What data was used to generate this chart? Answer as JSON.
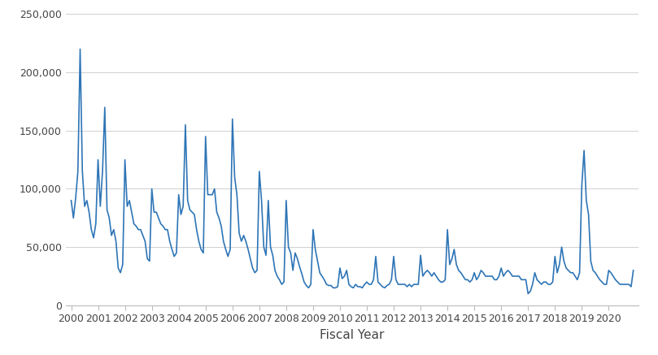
{
  "xlabel": "Fiscal Year",
  "line_color": "#2E75B6",
  "line_width": 1.2,
  "background_color": "#ffffff",
  "grid_color": "#d0d0d0",
  "ylim": [
    0,
    250000
  ],
  "yticks": [
    0,
    50000,
    100000,
    150000,
    200000,
    250000
  ],
  "xlabel_fontsize": 11,
  "tick_fontsize": 9,
  "values": [
    90000,
    75000,
    92000,
    115000,
    220000,
    115000,
    85000,
    90000,
    80000,
    65000,
    58000,
    70000,
    125000,
    85000,
    115000,
    170000,
    82000,
    75000,
    60000,
    65000,
    55000,
    32000,
    28000,
    35000,
    125000,
    85000,
    90000,
    80000,
    70000,
    68000,
    65000,
    65000,
    60000,
    55000,
    40000,
    38000,
    100000,
    80000,
    80000,
    75000,
    70000,
    68000,
    65000,
    65000,
    55000,
    48000,
    42000,
    45000,
    95000,
    78000,
    85000,
    155000,
    90000,
    82000,
    80000,
    78000,
    65000,
    55000,
    48000,
    45000,
    145000,
    95000,
    95000,
    95000,
    100000,
    80000,
    75000,
    68000,
    55000,
    48000,
    42000,
    48000,
    160000,
    110000,
    95000,
    62000,
    55000,
    60000,
    55000,
    48000,
    40000,
    32000,
    28000,
    30000,
    115000,
    90000,
    50000,
    43000,
    90000,
    50000,
    43000,
    30000,
    25000,
    22000,
    18000,
    20000,
    90000,
    50000,
    45000,
    30000,
    45000,
    40000,
    33000,
    27000,
    20000,
    17000,
    15000,
    18000,
    65000,
    48000,
    38000,
    28000,
    25000,
    22000,
    18000,
    17000,
    17000,
    15000,
    15000,
    16000,
    32000,
    23000,
    25000,
    30000,
    18000,
    16000,
    15000,
    18000,
    16000,
    16000,
    15000,
    18000,
    20000,
    18000,
    18000,
    22000,
    42000,
    20000,
    18000,
    16000,
    15000,
    17000,
    18000,
    22000,
    42000,
    22000,
    18000,
    18000,
    18000,
    18000,
    16000,
    18000,
    16000,
    18000,
    18000,
    18000,
    43000,
    25000,
    28000,
    30000,
    28000,
    25000,
    28000,
    25000,
    22000,
    20000,
    20000,
    22000,
    65000,
    35000,
    40000,
    48000,
    35000,
    30000,
    28000,
    25000,
    22000,
    22000,
    20000,
    22000,
    28000,
    22000,
    25000,
    30000,
    28000,
    25000,
    25000,
    25000,
    25000,
    22000,
    22000,
    25000,
    32000,
    25000,
    28000,
    30000,
    28000,
    25000,
    25000,
    25000,
    25000,
    22000,
    22000,
    22000,
    10000,
    12000,
    18000,
    28000,
    22000,
    20000,
    18000,
    20000,
    20000,
    18000,
    18000,
    20000,
    42000,
    28000,
    35000,
    50000,
    38000,
    32000,
    30000,
    28000,
    28000,
    25000,
    22000,
    28000,
    103000,
    133000,
    90000,
    78000,
    38000,
    30000,
    28000,
    25000,
    22000,
    20000,
    18000,
    18000,
    30000,
    28000,
    25000,
    22000,
    20000,
    18000,
    18000,
    18000,
    18000,
    18000,
    16000,
    30000
  ]
}
